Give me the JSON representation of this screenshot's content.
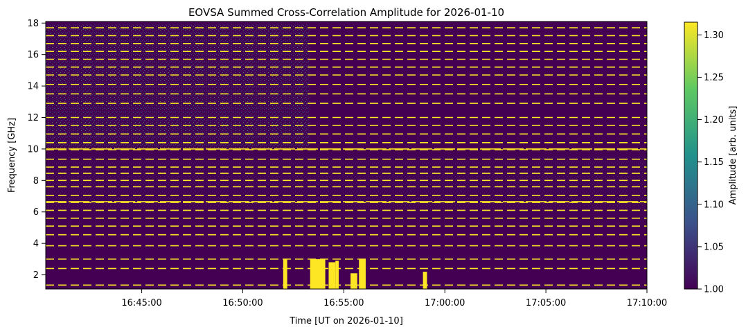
{
  "chart_data": {
    "type": "heatmap",
    "title": "EOVSA Summed Cross-Correlation Amplitude for 2026-01-10",
    "xlabel": "Time [UT on 2026-01-10]",
    "ylabel": "Frequency [GHz]",
    "colorbar_label": "Amplitude [arb. units]",
    "colormap": "viridis",
    "colorbar_colors": [
      "#440154",
      "#3b528b",
      "#21918c",
      "#5ec962",
      "#fde725"
    ],
    "x_start": "16:40:15",
    "x_end": "17:10:00",
    "x_ticks": [
      "16:45:00",
      "16:50:00",
      "16:55:00",
      "17:00:00",
      "17:05:00",
      "17:10:00"
    ],
    "ylim": [
      1.1,
      18.1
    ],
    "y_ticks": [
      2,
      4,
      6,
      8,
      10,
      12,
      14,
      16,
      18
    ],
    "clim": [
      1.0,
      1.315
    ],
    "colorbar_ticks": [
      "1.00",
      "1.05",
      "1.10",
      "1.15",
      "1.20",
      "1.25",
      "1.30"
    ],
    "saturated_bands_ghz": [
      1.35,
      2.4,
      3.0,
      3.85,
      4.55,
      5.1,
      5.6,
      6.1,
      6.6,
      7.05,
      7.6,
      8.0,
      8.45,
      8.85,
      9.35,
      9.95,
      10.4,
      10.95,
      11.5,
      12.0,
      12.9,
      13.5,
      14.1,
      14.7,
      15.2,
      15.7,
      16.2,
      16.7,
      17.2,
      17.7
    ],
    "bright_blocks": [
      {
        "start": "16:52:00",
        "end": "16:52:12",
        "fmax_ghz": 3.0
      },
      {
        "start": "16:53:20",
        "end": "16:54:05",
        "fmax_ghz": 3.0
      },
      {
        "start": "16:54:15",
        "end": "16:54:35",
        "fmax_ghz": 2.8
      },
      {
        "start": "16:54:35",
        "end": "16:54:45",
        "fmax_ghz": 2.9
      },
      {
        "start": "16:55:20",
        "end": "16:55:40",
        "fmax_ghz": 2.1
      },
      {
        "start": "16:55:45",
        "end": "16:56:05",
        "fmax_ghz": 3.0
      },
      {
        "start": "16:58:55",
        "end": "16:59:07",
        "fmax_ghz": 2.2
      }
    ],
    "active_band_ghz": [
      10.0,
      17.9
    ],
    "active_until": "16:53:20"
  }
}
